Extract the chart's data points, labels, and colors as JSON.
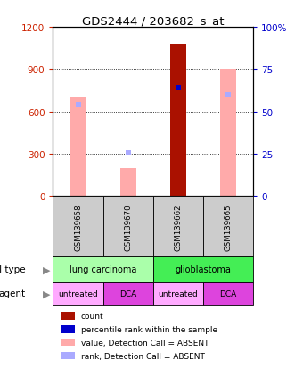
{
  "title": "GDS2444 / 203682_s_at",
  "samples": [
    "GSM139658",
    "GSM139670",
    "GSM139662",
    "GSM139665"
  ],
  "cell_types": [
    {
      "label": "lung carcinoma",
      "span": [
        0,
        2
      ],
      "color": "#aaffaa"
    },
    {
      "label": "glioblastoma",
      "span": [
        2,
        4
      ],
      "color": "#44ee55"
    }
  ],
  "agents": [
    {
      "label": "untreated",
      "span": [
        0,
        1
      ],
      "color": "#ffaaff"
    },
    {
      "label": "DCA",
      "span": [
        1,
        2
      ],
      "color": "#dd44dd"
    },
    {
      "label": "untreated",
      "span": [
        2,
        3
      ],
      "color": "#ffaaff"
    },
    {
      "label": "DCA",
      "span": [
        3,
        4
      ],
      "color": "#dd44dd"
    }
  ],
  "value_bars": [
    700,
    200,
    null,
    900
  ],
  "rank_dots_absent": [
    650,
    305,
    null,
    720
  ],
  "count_bar": [
    null,
    null,
    1080,
    null
  ],
  "count_rank_dot": [
    null,
    null,
    770,
    null
  ],
  "ylim_left": [
    0,
    1200
  ],
  "ylim_right": [
    0,
    100
  ],
  "yticks_left": [
    0,
    300,
    600,
    900,
    1200
  ],
  "yticks_right": [
    0,
    25,
    50,
    75,
    100
  ],
  "left_color": "#cc2200",
  "right_color": "#0000cc",
  "bar_color_value_absent": "#ffaaaa",
  "bar_color_count": "#aa1100",
  "dot_color_rank_absent": "#aaaaff",
  "dot_color_rank": "#0000cc",
  "legend": [
    {
      "color": "#aa1100",
      "label": "count"
    },
    {
      "color": "#0000cc",
      "label": "percentile rank within the sample"
    },
    {
      "color": "#ffaaaa",
      "label": "value, Detection Call = ABSENT"
    },
    {
      "color": "#aaaaff",
      "label": "rank, Detection Call = ABSENT"
    }
  ],
  "bar_width": 0.32,
  "x_positions": [
    0.5,
    1.5,
    2.5,
    3.5
  ]
}
